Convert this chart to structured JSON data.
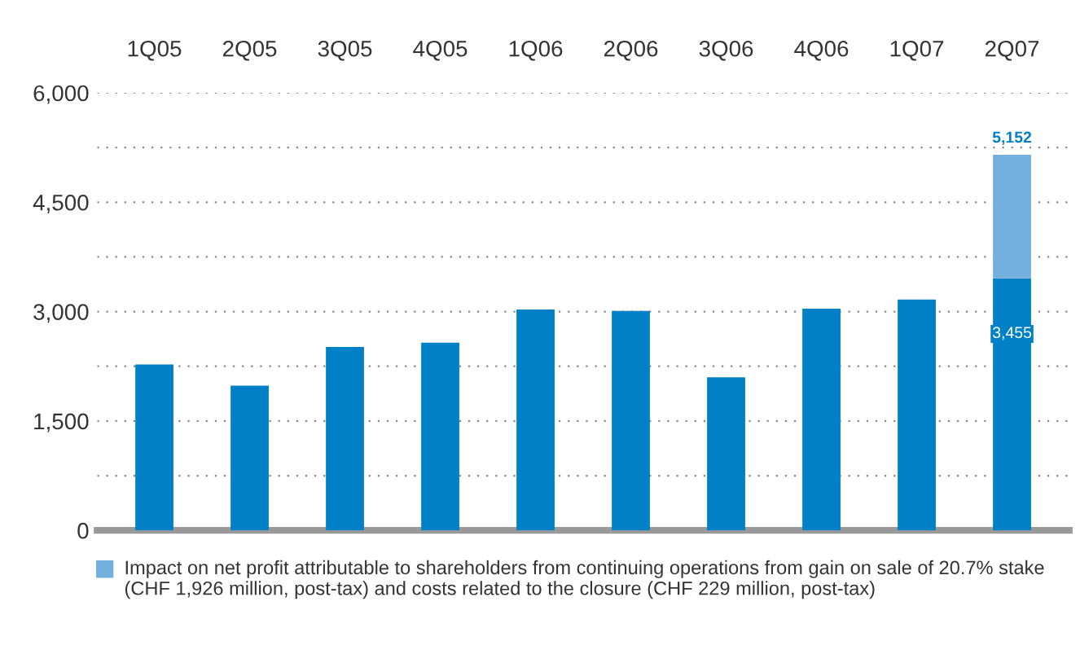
{
  "chart_data": {
    "type": "bar",
    "stacked": true,
    "categories": [
      "1Q05",
      "2Q05",
      "3Q05",
      "4Q05",
      "1Q06",
      "2Q06",
      "3Q06",
      "4Q06",
      "1Q07",
      "2Q07"
    ],
    "series": [
      {
        "color": "#0080c6",
        "values": [
          2275,
          1985,
          2515,
          2575,
          3030,
          3010,
          2100,
          3040,
          3165,
          3455
        ],
        "value_labels": [
          null,
          null,
          null,
          null,
          null,
          null,
          null,
          null,
          null,
          "3,455"
        ]
      },
      {
        "name": "Impact on net profit attributable to shareholders from continuing operations from gain on sale of 20.7% stake (CHF 1,926 million, post-tax) and costs related to the closure (CHF 229 million, post-tax)",
        "color": "#74b0dd",
        "values": [
          null,
          null,
          null,
          null,
          null,
          null,
          null,
          null,
          null,
          1697
        ]
      }
    ],
    "totals": [
      null,
      null,
      null,
      null,
      null,
      null,
      null,
      null,
      null,
      "5,152"
    ],
    "ylim": [
      0,
      6000
    ],
    "yticks": [
      0,
      {
        "value": 750,
        "label": null
      },
      {
        "value": 1500,
        "label": "1,500"
      },
      {
        "value": 2250,
        "label": null
      },
      {
        "value": 3000,
        "label": "3,000"
      },
      {
        "value": 3750,
        "label": null
      },
      {
        "value": 4500,
        "label": "4,500"
      },
      {
        "value": 5250,
        "label": null
      },
      {
        "value": 6000,
        "label": "6,000"
      }
    ],
    "grid": "y",
    "legend": "bottom"
  }
}
